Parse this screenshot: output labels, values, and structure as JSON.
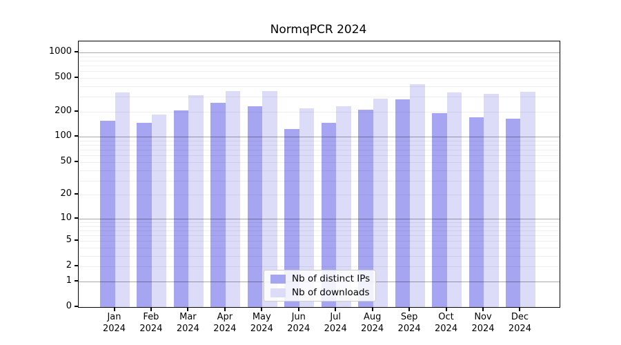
{
  "title": "NormqPCR 2024",
  "legend": {
    "items": [
      {
        "label": "Nb of distinct IPs",
        "color": "#a5a5f2"
      },
      {
        "label": "Nb of downloads",
        "color": "#dcdcf9"
      }
    ]
  },
  "chart_data": {
    "type": "bar",
    "title": "NormqPCR 2024",
    "categories": [
      "Jan",
      "Feb",
      "Mar",
      "Apr",
      "May",
      "Jun",
      "Jul",
      "Aug",
      "Sep",
      "Oct",
      "Nov",
      "Dec"
    ],
    "category_year": "2024",
    "series": [
      {
        "name": "Nb of distinct IPs",
        "color": "#a5a5f2",
        "values": [
          156,
          148,
          208,
          252,
          232,
          125,
          147,
          210,
          280,
          190,
          170,
          165
        ]
      },
      {
        "name": "Nb of downloads",
        "color": "#dcdcf9",
        "values": [
          335,
          185,
          310,
          347,
          350,
          218,
          230,
          285,
          420,
          338,
          325,
          345
        ]
      }
    ],
    "xlabel": "",
    "ylabel": "",
    "y_scale": "log10(1+x)",
    "y_ticks": [
      0,
      1,
      2,
      5,
      10,
      20,
      50,
      100,
      200,
      500,
      1000
    ],
    "ylim": [
      0,
      1200
    ],
    "grid": {
      "orientation": "horizontal",
      "minor_decades": [
        1,
        10,
        100
      ],
      "darker_at": [
        1,
        10,
        100,
        1000
      ],
      "drawn_over_bars": true
    },
    "legend_position": "lower center (inside plot)"
  }
}
